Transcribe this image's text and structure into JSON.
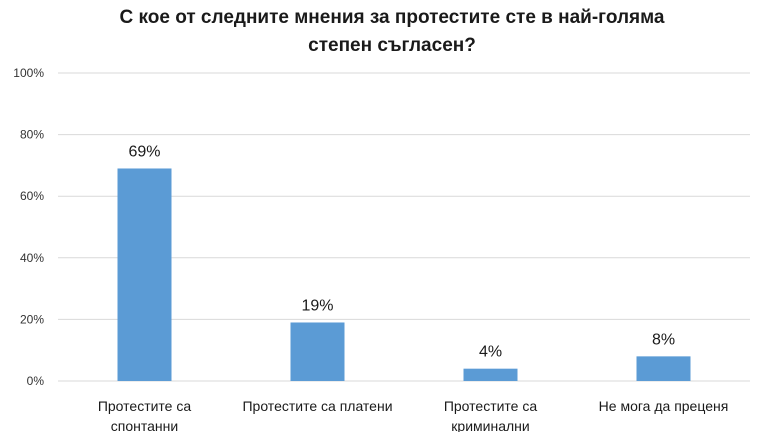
{
  "chart_data": {
    "type": "bar",
    "title_lines": [
      "С кое от следните мнения за протестите сте в най-голяма",
      "степен съгласен?"
    ],
    "categories": [
      [
        "Протестите са",
        "спонтанни"
      ],
      [
        "Протестите са платени"
      ],
      [
        "Протестите са",
        "криминални"
      ],
      [
        "Не мога да преценя"
      ]
    ],
    "values": [
      69,
      19,
      4,
      8
    ],
    "data_labels": [
      "69%",
      "19%",
      "4%",
      "8%"
    ],
    "ylim": [
      0,
      100
    ],
    "y_ticks": [
      0,
      20,
      40,
      60,
      80,
      100
    ],
    "y_tick_labels": [
      "0%",
      "20%",
      "40%",
      "60%",
      "80%",
      "100%"
    ],
    "grid": true,
    "legend": "none",
    "bar_color": "#5b9bd5"
  }
}
